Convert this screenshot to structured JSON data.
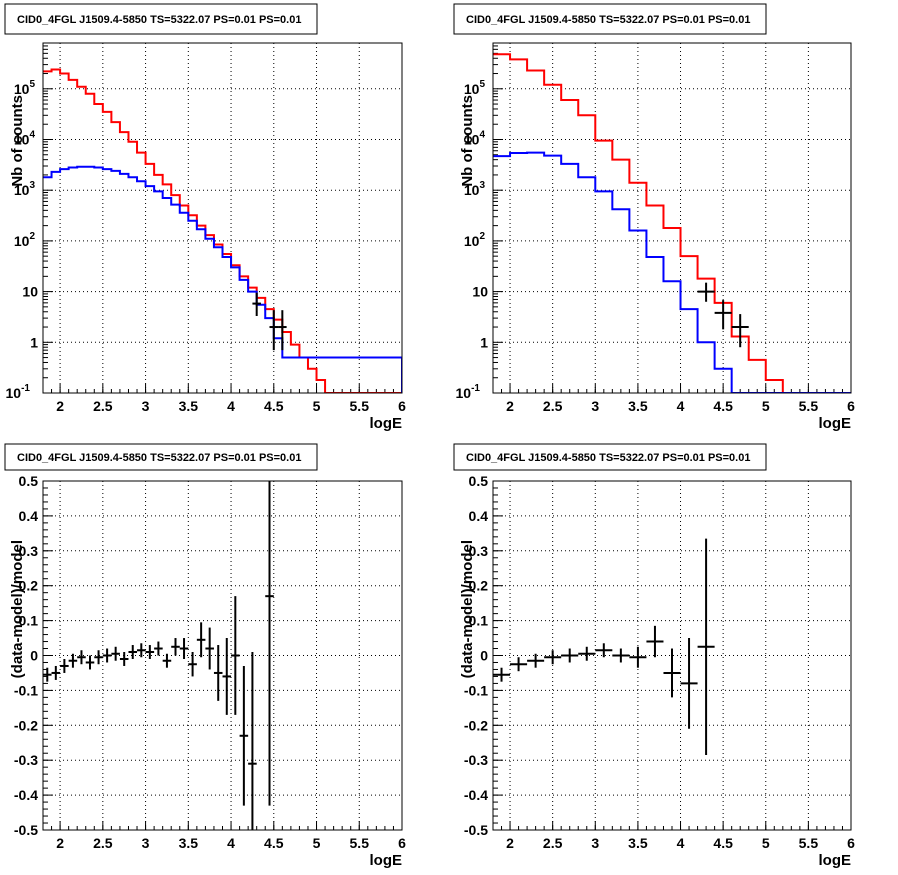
{
  "chart_data": [
    {
      "type": "line",
      "title": "CID0_4FGL J1509.4-5850 TS=5322.07 PS=0.01 PS=0.01",
      "xlabel": "logE",
      "ylabel": "Nb of counts",
      "yscale": "log",
      "xlim": [
        1.8,
        6.0
      ],
      "ylim": [
        0.1,
        800000
      ],
      "grid": true,
      "xticks": [
        "2",
        "2.5",
        "3",
        "3.5",
        "4",
        "4.5",
        "5",
        "5.5",
        "6"
      ],
      "yticks": [
        {
          "v": 0.1,
          "base": "10",
          "sup": "-1"
        },
        {
          "v": 1,
          "text": "1"
        },
        {
          "v": 10,
          "text": "10"
        },
        {
          "v": 100,
          "base": "10",
          "sup": "2"
        },
        {
          "v": 1000,
          "base": "10",
          "sup": "3"
        },
        {
          "v": 10000,
          "base": "10",
          "sup": "4"
        },
        {
          "v": 100000,
          "base": "10",
          "sup": "5"
        }
      ],
      "series": [
        {
          "kind": "hist",
          "color": "#ff0000",
          "edges": [
            1.8,
            1.9,
            2.0,
            2.1,
            2.2,
            2.3,
            2.4,
            2.5,
            2.6,
            2.7,
            2.8,
            2.9,
            3.0,
            3.1,
            3.2,
            3.3,
            3.4,
            3.5,
            3.6,
            3.7,
            3.8,
            3.9,
            4.0,
            4.1,
            4.2,
            4.3,
            4.4,
            4.5,
            4.6,
            4.7,
            4.8,
            4.9,
            5.0,
            5.1,
            6.0
          ],
          "values": [
            220000,
            240000,
            200000,
            150000,
            110000,
            80000,
            50000,
            35000,
            22000,
            14000,
            9000,
            5500,
            3300,
            2000,
            1300,
            800,
            500,
            320,
            200,
            130,
            85,
            55,
            33,
            20,
            12,
            7.5,
            4.5,
            2.8,
            1.6,
            0.9,
            0.5,
            0.3,
            0.18,
            0.1
          ]
        },
        {
          "kind": "hist",
          "color": "#0000ff",
          "edges": [
            1.8,
            1.9,
            2.0,
            2.1,
            2.2,
            2.3,
            2.4,
            2.5,
            2.6,
            2.7,
            2.8,
            2.9,
            3.0,
            3.1,
            3.2,
            3.3,
            3.4,
            3.5,
            3.6,
            3.7,
            3.8,
            3.9,
            4.0,
            4.1,
            4.2,
            4.3,
            4.4,
            4.5,
            4.6,
            6.0
          ],
          "values": [
            1800,
            2300,
            2600,
            2800,
            2900,
            2900,
            2800,
            2600,
            2400,
            2100,
            1800,
            1500,
            1200,
            950,
            700,
            520,
            360,
            250,
            170,
            110,
            75,
            48,
            30,
            17,
            10,
            5.5,
            3,
            1.2,
            0.5,
            0.1
          ]
        },
        {
          "kind": "points",
          "color": "#000000",
          "x": [
            4.3,
            4.5,
            4.6
          ],
          "y": [
            5.8,
            2.0,
            2.0
          ],
          "xerr": [
            0.05,
            0.05,
            0.05
          ],
          "ylo": [
            3.3,
            0.7,
            0.7
          ],
          "yhi": [
            9.5,
            4.3,
            4.3
          ]
        }
      ]
    },
    {
      "type": "line",
      "title": "CID0_4FGL J1509.4-5850 TS=5322.07 PS=0.01 PS=0.01",
      "xlabel": "logE",
      "ylabel": "Nb of counts",
      "yscale": "log",
      "xlim": [
        1.8,
        6.0
      ],
      "ylim": [
        0.1,
        800000
      ],
      "grid": true,
      "xticks": [
        "2",
        "2.5",
        "3",
        "3.5",
        "4",
        "4.5",
        "5",
        "5.5",
        "6"
      ],
      "yticks": [
        {
          "v": 0.1,
          "base": "10",
          "sup": "-1"
        },
        {
          "v": 1,
          "text": "1"
        },
        {
          "v": 10,
          "text": "10"
        },
        {
          "v": 100,
          "base": "10",
          "sup": "2"
        },
        {
          "v": 1000,
          "base": "10",
          "sup": "3"
        },
        {
          "v": 10000,
          "base": "10",
          "sup": "4"
        },
        {
          "v": 100000,
          "base": "10",
          "sup": "5"
        }
      ],
      "series": [
        {
          "kind": "hist",
          "color": "#ff0000",
          "edges": [
            1.8,
            2.0,
            2.2,
            2.4,
            2.6,
            2.8,
            3.0,
            3.2,
            3.4,
            3.6,
            3.8,
            4.0,
            4.2,
            4.4,
            4.6,
            4.8,
            5.0,
            5.2,
            6.0
          ],
          "values": [
            480000,
            380000,
            230000,
            120000,
            60000,
            30000,
            9500,
            4000,
            1400,
            500,
            180,
            50,
            18,
            6,
            1.3,
            0.45,
            0.18,
            0.1
          ]
        },
        {
          "kind": "hist",
          "color": "#0000ff",
          "edges": [
            1.8,
            2.0,
            2.2,
            2.4,
            2.6,
            2.8,
            3.0,
            3.2,
            3.4,
            3.6,
            3.8,
            4.0,
            4.2,
            4.4,
            4.6,
            4.8,
            6.0
          ],
          "values": [
            4700,
            5400,
            5500,
            4800,
            3300,
            1800,
            950,
            420,
            160,
            48,
            16,
            4.5,
            1,
            0.3,
            0.1,
            0.1
          ]
        },
        {
          "kind": "points",
          "color": "#000000",
          "x": [
            4.3,
            4.5,
            4.7
          ],
          "y": [
            10,
            3.8,
            2.0
          ],
          "xerr": [
            0.1,
            0.1,
            0.1
          ],
          "ylo": [
            6.3,
            1.8,
            0.8
          ],
          "yhi": [
            15,
            6.8,
            3.6
          ]
        }
      ]
    },
    {
      "type": "scatter",
      "title": "CID0_4FGL J1509.4-5850 TS=5322.07 PS=0.01 PS=0.01",
      "xlabel": "logE",
      "ylabel": "(data-model)/model",
      "yscale": "linear",
      "xlim": [
        1.8,
        6.0
      ],
      "ylim": [
        -0.5,
        0.5
      ],
      "grid": true,
      "xticks": [
        "2",
        "2.5",
        "3",
        "3.5",
        "4",
        "4.5",
        "5",
        "5.5",
        "6"
      ],
      "yticks": [
        "-0.5",
        "-0.4",
        "-0.3",
        "-0.2",
        "-0.1",
        "0",
        "0.1",
        "0.2",
        "0.3",
        "0.4",
        "0.5"
      ],
      "series": [
        {
          "kind": "points",
          "color": "#000000",
          "x": [
            1.85,
            1.95,
            2.05,
            2.15,
            2.25,
            2.35,
            2.45,
            2.55,
            2.65,
            2.75,
            2.85,
            2.95,
            3.05,
            3.15,
            3.25,
            3.35,
            3.45,
            3.55,
            3.65,
            3.75,
            3.85,
            3.95,
            4.05,
            4.15,
            4.25,
            4.45
          ],
          "y": [
            -0.055,
            -0.05,
            -0.03,
            -0.015,
            -0.005,
            -0.02,
            -0.005,
            0.0,
            0.005,
            -0.01,
            0.01,
            0.015,
            0.01,
            0.02,
            -0.015,
            0.025,
            0.02,
            -0.025,
            0.045,
            0.02,
            -0.05,
            -0.06,
            0.0,
            -0.23,
            -0.31,
            0.17
          ],
          "xerr": [
            0.05,
            0.05,
            0.05,
            0.05,
            0.05,
            0.05,
            0.05,
            0.05,
            0.05,
            0.05,
            0.05,
            0.05,
            0.05,
            0.05,
            0.05,
            0.05,
            0.05,
            0.05,
            0.05,
            0.05,
            0.05,
            0.05,
            0.05,
            0.05,
            0.05,
            0.05
          ],
          "yerr": [
            0.02,
            0.02,
            0.02,
            0.02,
            0.02,
            0.02,
            0.02,
            0.02,
            0.02,
            0.02,
            0.02,
            0.02,
            0.02,
            0.02,
            0.02,
            0.025,
            0.03,
            0.035,
            0.05,
            0.06,
            0.08,
            0.11,
            0.17,
            0.2,
            0.32,
            0.6
          ]
        }
      ]
    },
    {
      "type": "scatter",
      "title": "CID0_4FGL J1509.4-5850 TS=5322.07 PS=0.01 PS=0.01",
      "xlabel": "logE",
      "ylabel": "(data-model)/model",
      "yscale": "linear",
      "xlim": [
        1.8,
        6.0
      ],
      "ylim": [
        -0.5,
        0.5
      ],
      "grid": true,
      "xticks": [
        "2",
        "2.5",
        "3",
        "3.5",
        "4",
        "4.5",
        "5",
        "5.5",
        "6"
      ],
      "yticks": [
        "-0.5",
        "-0.4",
        "-0.3",
        "-0.2",
        "-0.1",
        "0",
        "0.1",
        "0.2",
        "0.3",
        "0.4",
        "0.5"
      ],
      "series": [
        {
          "kind": "points",
          "color": "#000000",
          "x": [
            1.9,
            2.1,
            2.3,
            2.5,
            2.7,
            2.9,
            3.1,
            3.3,
            3.5,
            3.7,
            3.9,
            4.1,
            4.3
          ],
          "y": [
            -0.055,
            -0.025,
            -0.015,
            -0.005,
            0.0,
            0.005,
            0.015,
            0.0,
            -0.005,
            0.04,
            -0.05,
            -0.08,
            0.025
          ],
          "xerr": [
            0.1,
            0.1,
            0.1,
            0.1,
            0.1,
            0.1,
            0.1,
            0.1,
            0.1,
            0.1,
            0.1,
            0.1,
            0.1
          ],
          "yerr": [
            0.02,
            0.02,
            0.02,
            0.02,
            0.02,
            0.02,
            0.02,
            0.02,
            0.03,
            0.045,
            0.07,
            0.13,
            0.31
          ]
        }
      ]
    }
  ]
}
